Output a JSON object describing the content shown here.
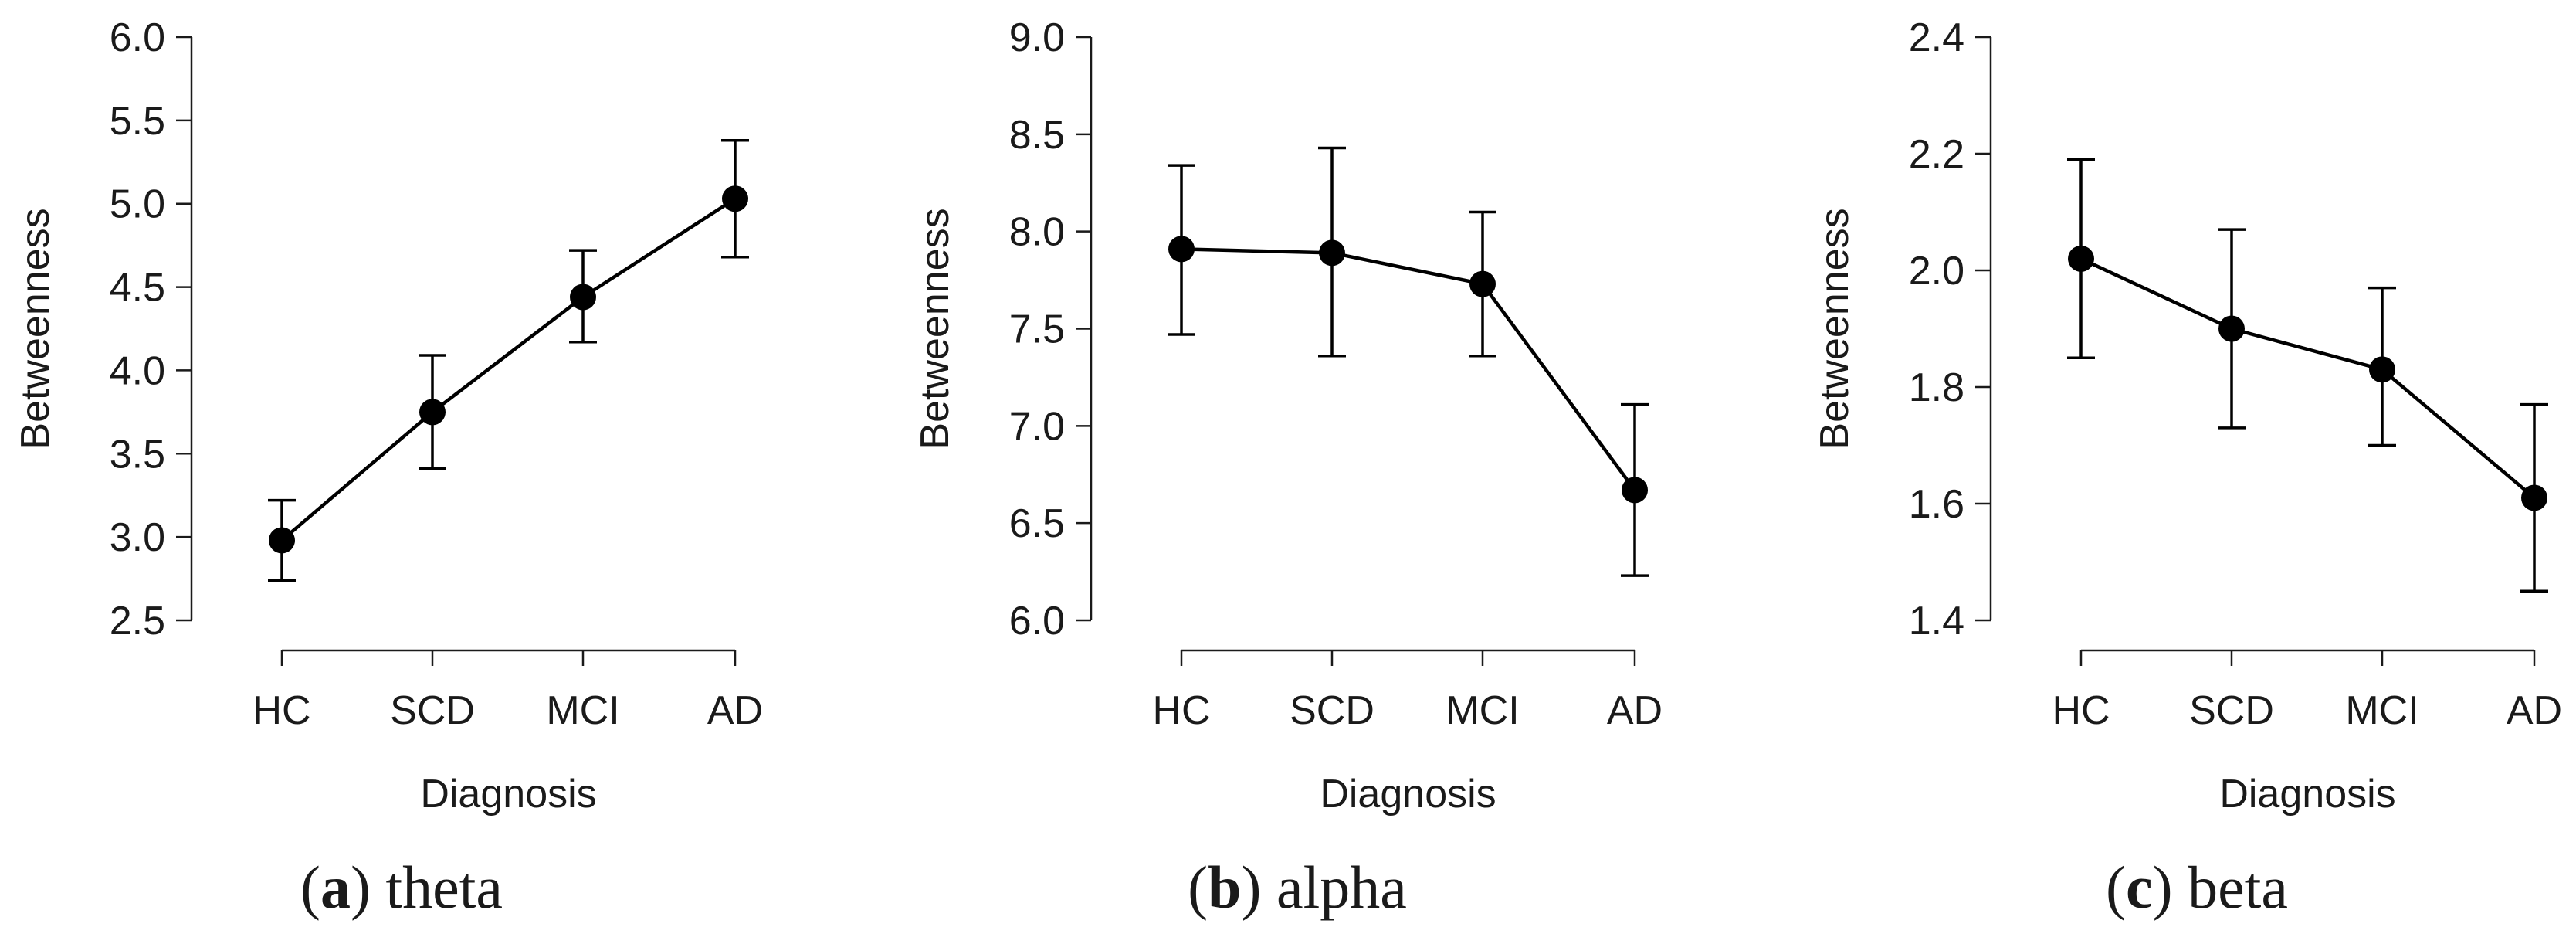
{
  "chart_data": [
    {
      "type": "line",
      "panel_tag": "a",
      "panel_name": "theta",
      "xlabel": "Diagnosis",
      "ylabel": "Betweenness",
      "categories": [
        "HC",
        "SCD",
        "MCI",
        "AD"
      ],
      "values": [
        2.98,
        3.75,
        4.44,
        5.03
      ],
      "error_low": [
        2.74,
        3.41,
        4.17,
        4.68
      ],
      "error_high": [
        3.22,
        4.09,
        4.72,
        5.38
      ],
      "ylim": [
        2.5,
        6.0
      ],
      "yticks": [
        "2.5",
        "3.0",
        "3.5",
        "4.0",
        "4.5",
        "5.0",
        "5.5",
        "6.0"
      ]
    },
    {
      "type": "line",
      "panel_tag": "b",
      "panel_name": "alpha",
      "xlabel": "Diagnosis",
      "ylabel": "Betweenness",
      "categories": [
        "HC",
        "SCD",
        "MCI",
        "AD"
      ],
      "values": [
        7.91,
        7.89,
        7.73,
        6.67
      ],
      "error_low": [
        7.47,
        7.36,
        7.36,
        6.23
      ],
      "error_high": [
        8.34,
        8.43,
        8.1,
        7.11
      ],
      "ylim": [
        6.0,
        9.0
      ],
      "yticks": [
        "6.0",
        "6.5",
        "7.0",
        "7.5",
        "8.0",
        "8.5",
        "9.0"
      ]
    },
    {
      "type": "line",
      "panel_tag": "c",
      "panel_name": "beta",
      "xlabel": "Diagnosis",
      "ylabel": "Betweenness",
      "categories": [
        "HC",
        "SCD",
        "MCI",
        "AD"
      ],
      "values": [
        2.02,
        1.9,
        1.83,
        1.61
      ],
      "error_low": [
        1.85,
        1.73,
        1.7,
        1.45
      ],
      "error_high": [
        2.19,
        2.07,
        1.97,
        1.77
      ],
      "ylim": [
        1.4,
        2.4
      ],
      "yticks": [
        "1.4",
        "1.6",
        "1.8",
        "2.0",
        "2.2",
        "2.4"
      ]
    }
  ]
}
